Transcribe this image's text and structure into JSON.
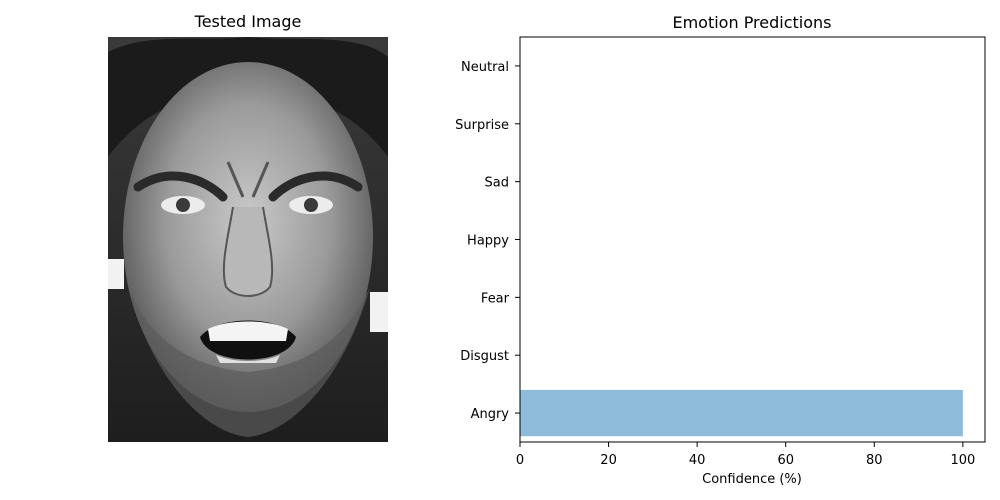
{
  "left_panel": {
    "title": "Tested Image",
    "image_alt": "grayscale close-up photo of a man's angry face"
  },
  "chart_data": {
    "type": "bar",
    "orientation": "horizontal",
    "title": "Emotion Predictions",
    "xlabel": "Confidence (%)",
    "ylabel": "",
    "categories": [
      "Angry",
      "Disgust",
      "Fear",
      "Happy",
      "Sad",
      "Surprise",
      "Neutral"
    ],
    "values": [
      100,
      0,
      0,
      0,
      0,
      0,
      0
    ],
    "xlim": [
      0,
      105
    ],
    "xticks": [
      0,
      20,
      40,
      60,
      80,
      100
    ],
    "bar_color": "#8fbbdb",
    "grid": false,
    "legend": "none"
  }
}
